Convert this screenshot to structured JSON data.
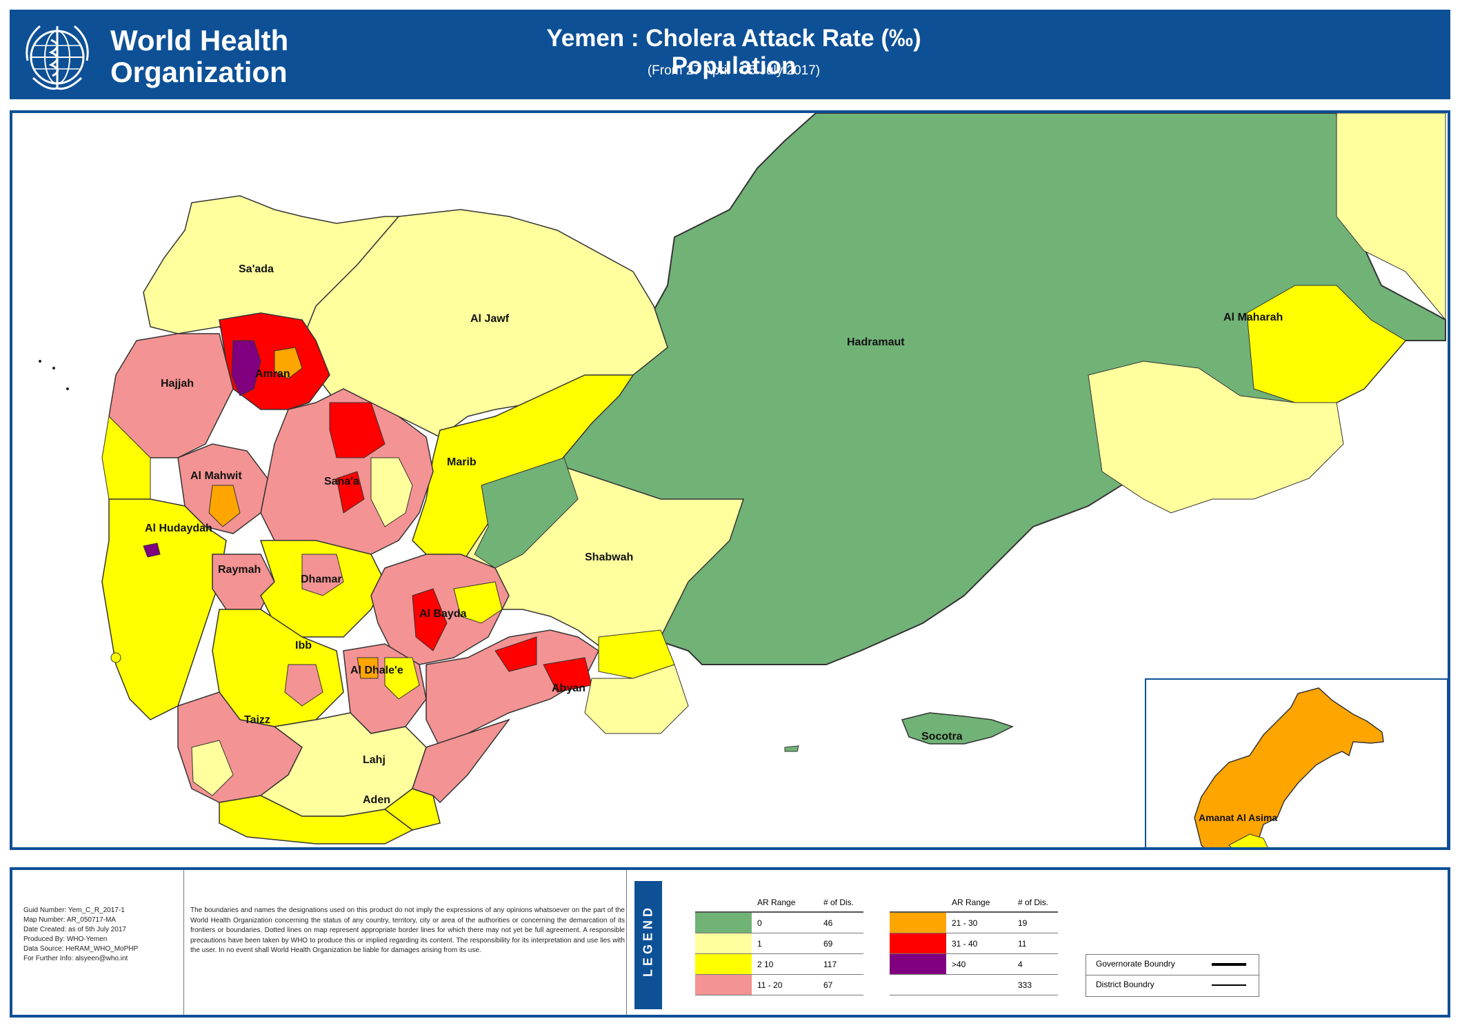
{
  "header": {
    "org_line1": "World Health",
    "org_line2": "Organization",
    "title": "Yemen : Cholera Attack Rate (‰) Population",
    "subtitle": "(From 27 April - 05 July 2017)"
  },
  "map": {
    "icon": "yemen-choropleth-map",
    "governorates": [
      "Sa'ada",
      "Al Jawf",
      "Hajjah",
      "Amran",
      "Hadramaut",
      "Al Maharah",
      "Marib",
      "Al Mahwit",
      "Sana'a",
      "Al Hudaydah",
      "Raymah",
      "Dhamar",
      "Shabwah",
      "Al Bayda",
      "Ibb",
      "Al Dhale'e",
      "Abyan",
      "Taizz",
      "Lahj",
      "Aden",
      "Socotra"
    ],
    "inset_label": "Amanat Al Asima"
  },
  "colors": {
    "ar_0": "#71b277",
    "ar_1": "#ffff9e",
    "ar_2_10": "#ffff00",
    "ar_11_20": "#f49393",
    "ar_21_30": "#ffa500",
    "ar_31_40": "#ff0000",
    "ar_over_40": "#800080",
    "brand": "#0d5096"
  },
  "footer": {
    "meta": [
      "Guid Number:   Yem_C_R_2017-1",
      "Map Number:   AR_050717-MA",
      "Date Created:  as of 5th July 2017",
      "Produced By:   WHO-Yemen",
      "Data Source:   HeRAM_WHO_MoPHP",
      "For Further Info:  alsyeen@who.int"
    ],
    "disclaimer": "The boundaries and names the designations used on this product do not imply the expressions of any opinions whatsoever on the part of the World Health Organization concerning the status of any country, territory, city or area of the authorities or concerning the demarcation of its frontiers or boundaries. Dotted lines on map represent appropriate border lines for which there may not yet be full agreement. A responsible precautions have been taken by WHO to produce this or implied regarding its content. The responsibility for its interpretation and use lies with the user. In no event shall World Health Organization be liable for damages arising from its use.",
    "legend_title": "LEGEND",
    "table1": {
      "headers": [
        "AR Range",
        "# of Dis."
      ],
      "rows": [
        {
          "range": "0",
          "count": "46"
        },
        {
          "range": "1",
          "count": "69"
        },
        {
          "range": "2  10",
          "count": "117"
        },
        {
          "range": "11 - 20",
          "count": "67"
        }
      ]
    },
    "table2": {
      "headers": [
        "AR Range",
        "# of Dis."
      ],
      "rows": [
        {
          "range": "21 - 30",
          "count": "19"
        },
        {
          "range": "31 - 40",
          "count": "11"
        },
        {
          "range": ">40",
          "count": "4"
        }
      ],
      "total": "333"
    },
    "boundaries": {
      "governorate": "Governorate Boundry",
      "district": "District Boundry"
    }
  }
}
